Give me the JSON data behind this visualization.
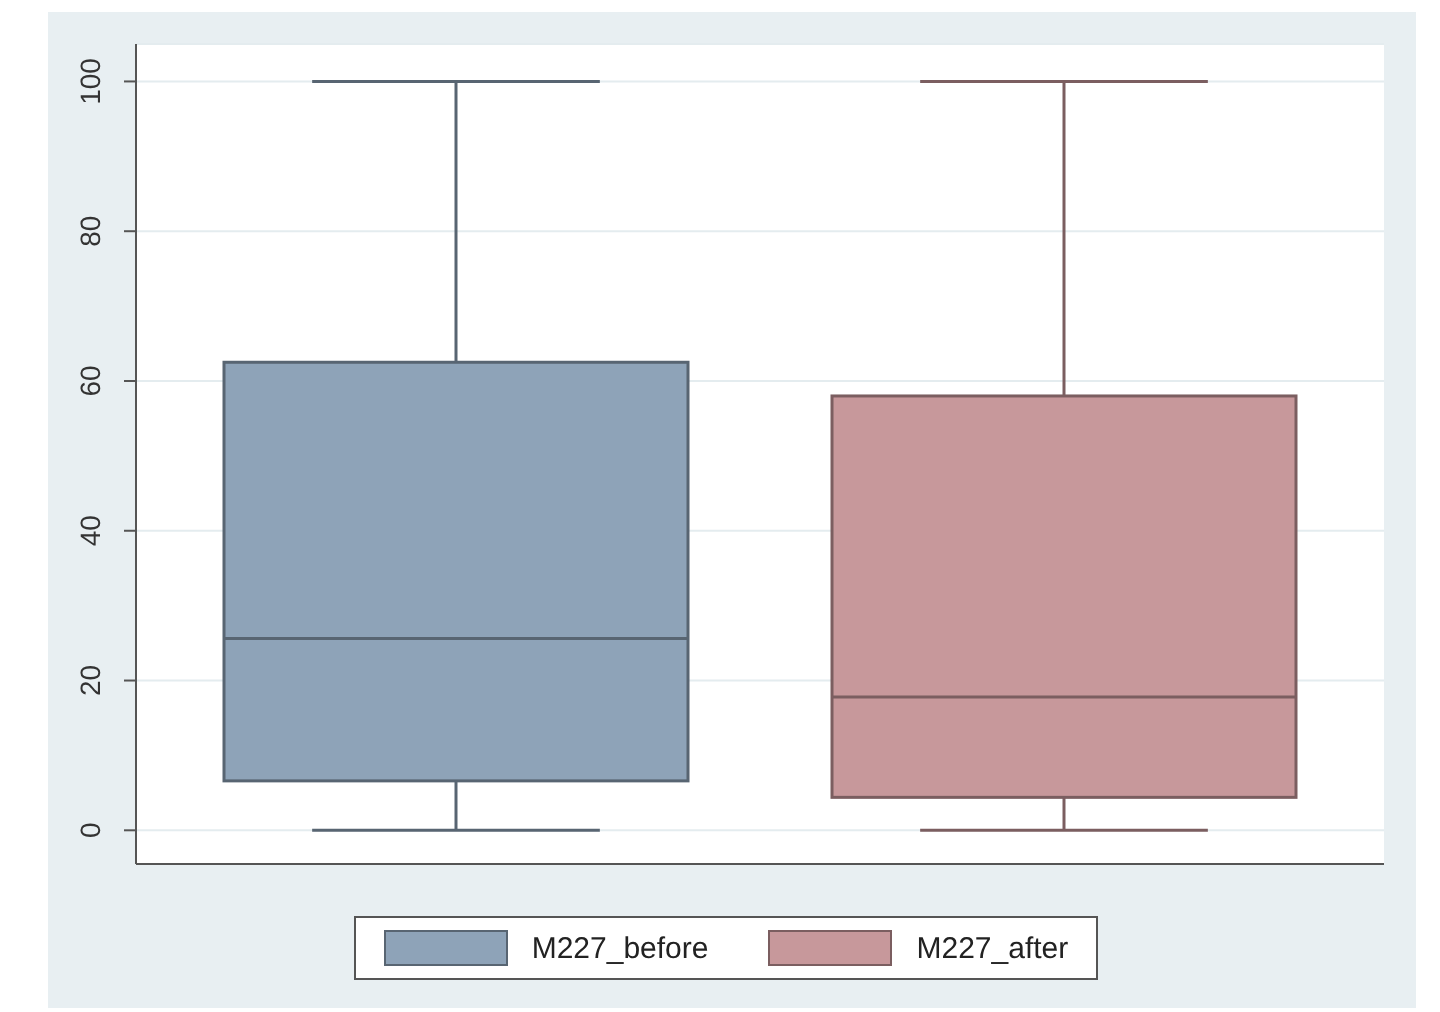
{
  "chart_data": {
    "type": "box",
    "categories": [
      null
    ],
    "series": [
      {
        "name": "M227_before",
        "color": "#8ea3b8",
        "boxes": [
          {
            "low": 0,
            "q1": 6.6,
            "median": 25.6,
            "q3": 62.5,
            "high": 100
          }
        ]
      },
      {
        "name": "M227_after",
        "color": "#c7989b",
        "boxes": [
          {
            "low": 0,
            "q1": 4.4,
            "median": 17.8,
            "q3": 58,
            "high": 100
          }
        ]
      }
    ],
    "ylim": [
      -4.5,
      105
    ],
    "yticks": [
      0,
      20,
      40,
      60,
      80,
      100
    ],
    "grid": "y",
    "legend": "bottom"
  }
}
